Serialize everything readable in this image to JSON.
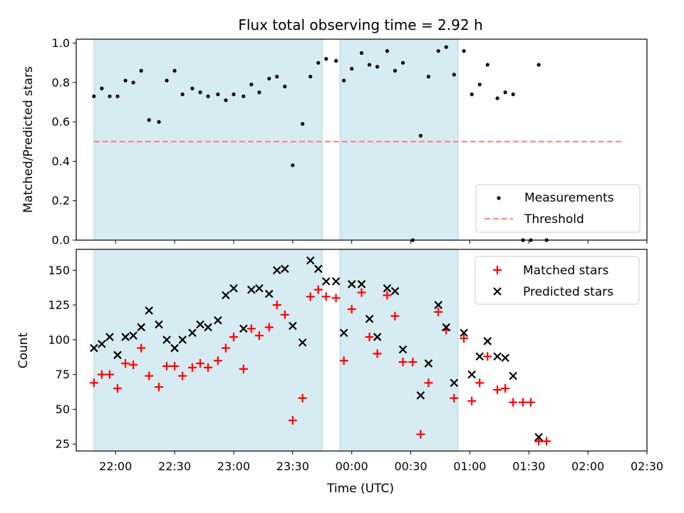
{
  "figure": {
    "title": "Flux total observing time = 2.92 h",
    "xlabel": "Time (UTC)",
    "xtick_labels": [
      "22:00",
      "22:30",
      "23:00",
      "23:30",
      "00:00",
      "00:30",
      "01:00",
      "01:30",
      "02:00",
      "02:30"
    ]
  },
  "chart_data": [
    {
      "type": "scatter",
      "ylabel": "Matched/Predicted stars",
      "xlim": [
        "21:40",
        "02:30"
      ],
      "ylim": [
        0,
        1.02
      ],
      "yticks": [
        "0.0",
        "0.2",
        "0.4",
        "0.6",
        "0.8",
        "1.0"
      ],
      "grid": false,
      "legend_position": "lower-right",
      "shaded_intervals": [
        [
          "21:49",
          "23:45"
        ],
        [
          "23:54",
          "00:54"
        ]
      ],
      "threshold": {
        "name": "Threshold",
        "y": 0.5,
        "x_range": [
          "21:49",
          "02:17"
        ],
        "color": "#ff8080"
      },
      "series": [
        {
          "name": "Measurements",
          "color": "#000000",
          "points": [
            [
              "21:49",
              0.73
            ],
            [
              "21:53",
              0.77
            ],
            [
              "21:57",
              0.73
            ],
            [
              "22:01",
              0.73
            ],
            [
              "22:05",
              0.81
            ],
            [
              "22:09",
              0.8
            ],
            [
              "22:13",
              0.86
            ],
            [
              "22:17",
              0.61
            ],
            [
              "22:22",
              0.6
            ],
            [
              "22:26",
              0.81
            ],
            [
              "22:30",
              0.86
            ],
            [
              "22:34",
              0.74
            ],
            [
              "22:39",
              0.77
            ],
            [
              "22:43",
              0.75
            ],
            [
              "22:47",
              0.73
            ],
            [
              "22:52",
              0.74
            ],
            [
              "22:56",
              0.71
            ],
            [
              "23:00",
              0.74
            ],
            [
              "23:05",
              0.73
            ],
            [
              "23:09",
              0.79
            ],
            [
              "23:13",
              0.75
            ],
            [
              "23:18",
              0.82
            ],
            [
              "23:22",
              0.83
            ],
            [
              "23:26",
              0.78
            ],
            [
              "23:30",
              0.38
            ],
            [
              "23:35",
              0.59
            ],
            [
              "23:39",
              0.83
            ],
            [
              "23:43",
              0.9
            ],
            [
              "23:47",
              0.92
            ],
            [
              "23:52",
              0.91
            ],
            [
              "23:56",
              0.81
            ],
            [
              "00:00",
              0.87
            ],
            [
              "00:05",
              0.95
            ],
            [
              "00:09",
              0.89
            ],
            [
              "00:13",
              0.88
            ],
            [
              "00:18",
              0.96
            ],
            [
              "00:22",
              0.86
            ],
            [
              "00:26",
              0.9
            ],
            [
              "00:31",
              0.0
            ],
            [
              "00:35",
              0.53
            ],
            [
              "00:39",
              0.83
            ],
            [
              "00:44",
              0.96
            ],
            [
              "00:48",
              0.98
            ],
            [
              "00:52",
              0.84
            ],
            [
              "00:57",
              0.96
            ],
            [
              "01:01",
              0.74
            ],
            [
              "01:05",
              0.79
            ],
            [
              "01:09",
              0.89
            ],
            [
              "01:14",
              0.72
            ],
            [
              "01:18",
              0.75
            ],
            [
              "01:22",
              0.74
            ],
            [
              "01:27",
              0.0
            ],
            [
              "01:31",
              0.0
            ],
            [
              "01:35",
              0.89
            ],
            [
              "01:39",
              0.0
            ]
          ]
        }
      ]
    },
    {
      "type": "scatter",
      "ylabel": "Count",
      "xlim": [
        "21:40",
        "02:30"
      ],
      "ylim": [
        20,
        165
      ],
      "yticks": [
        "25",
        "50",
        "75",
        "100",
        "125",
        "150"
      ],
      "grid": false,
      "legend_position": "upper-right",
      "shaded_intervals": [
        [
          "21:49",
          "23:45"
        ],
        [
          "23:54",
          "00:54"
        ]
      ],
      "series": [
        {
          "name": "Matched stars",
          "color": "#ff0000",
          "points": [
            [
              "21:49",
              69
            ],
            [
              "21:53",
              75
            ],
            [
              "21:57",
              75
            ],
            [
              "22:01",
              65
            ],
            [
              "22:05",
              83
            ],
            [
              "22:09",
              82
            ],
            [
              "22:13",
              94
            ],
            [
              "22:17",
              74
            ],
            [
              "22:22",
              66
            ],
            [
              "22:26",
              81
            ],
            [
              "22:30",
              81
            ],
            [
              "22:34",
              74
            ],
            [
              "22:39",
              80
            ],
            [
              "22:43",
              83
            ],
            [
              "22:47",
              80
            ],
            [
              "22:52",
              85
            ],
            [
              "22:56",
              94
            ],
            [
              "23:00",
              102
            ],
            [
              "23:05",
              79
            ],
            [
              "23:09",
              108
            ],
            [
              "23:13",
              103
            ],
            [
              "23:18",
              109
            ],
            [
              "23:22",
              125
            ],
            [
              "23:26",
              118
            ],
            [
              "23:30",
              42
            ],
            [
              "23:35",
              58
            ],
            [
              "23:39",
              131
            ],
            [
              "23:43",
              136
            ],
            [
              "23:47",
              131
            ],
            [
              "23:52",
              130
            ],
            [
              "23:56",
              85
            ],
            [
              "00:00",
              122
            ],
            [
              "00:05",
              134
            ],
            [
              "00:09",
              102
            ],
            [
              "00:13",
              90
            ],
            [
              "00:18",
              132
            ],
            [
              "00:22",
              117
            ],
            [
              "00:26",
              84
            ],
            [
              "00:31",
              84
            ],
            [
              "00:35",
              32
            ],
            [
              "00:39",
              69
            ],
            [
              "00:44",
              120
            ],
            [
              "00:48",
              107
            ],
            [
              "00:52",
              58
            ],
            [
              "00:57",
              101
            ],
            [
              "01:01",
              56
            ],
            [
              "01:05",
              69
            ],
            [
              "01:09",
              88
            ],
            [
              "01:14",
              64
            ],
            [
              "01:18",
              65
            ],
            [
              "01:22",
              55
            ],
            [
              "01:27",
              55
            ],
            [
              "01:31",
              55
            ],
            [
              "01:35",
              27
            ],
            [
              "01:39",
              27
            ]
          ]
        },
        {
          "name": "Predicted stars",
          "color": "#000000",
          "points": [
            [
              "21:49",
              94
            ],
            [
              "21:53",
              97
            ],
            [
              "21:57",
              102
            ],
            [
              "22:01",
              89
            ],
            [
              "22:05",
              102
            ],
            [
              "22:09",
              103
            ],
            [
              "22:13",
              109
            ],
            [
              "22:17",
              121
            ],
            [
              "22:22",
              111
            ],
            [
              "22:26",
              100
            ],
            [
              "22:30",
              94
            ],
            [
              "22:34",
              100
            ],
            [
              "22:39",
              105
            ],
            [
              "22:43",
              111
            ],
            [
              "22:47",
              109
            ],
            [
              "22:52",
              114
            ],
            [
              "22:56",
              132
            ],
            [
              "23:00",
              137
            ],
            [
              "23:05",
              108
            ],
            [
              "23:09",
              136
            ],
            [
              "23:13",
              137
            ],
            [
              "23:18",
              133
            ],
            [
              "23:22",
              150
            ],
            [
              "23:26",
              151
            ],
            [
              "23:30",
              110
            ],
            [
              "23:35",
              98
            ],
            [
              "23:39",
              157
            ],
            [
              "23:43",
              151
            ],
            [
              "23:47",
              142
            ],
            [
              "23:52",
              142
            ],
            [
              "23:56",
              105
            ],
            [
              "00:00",
              140
            ],
            [
              "00:05",
              140
            ],
            [
              "00:09",
              115
            ],
            [
              "00:13",
              102
            ],
            [
              "00:18",
              137
            ],
            [
              "00:22",
              135
            ],
            [
              "00:26",
              93
            ],
            [
              "00:35",
              60
            ],
            [
              "00:39",
              83
            ],
            [
              "00:44",
              125
            ],
            [
              "00:48",
              109
            ],
            [
              "00:52",
              69
            ],
            [
              "00:57",
              105
            ],
            [
              "01:01",
              75
            ],
            [
              "01:05",
              88
            ],
            [
              "01:09",
              99
            ],
            [
              "01:14",
              88
            ],
            [
              "01:18",
              87
            ],
            [
              "01:22",
              74
            ],
            [
              "01:35",
              30
            ]
          ]
        }
      ]
    }
  ]
}
